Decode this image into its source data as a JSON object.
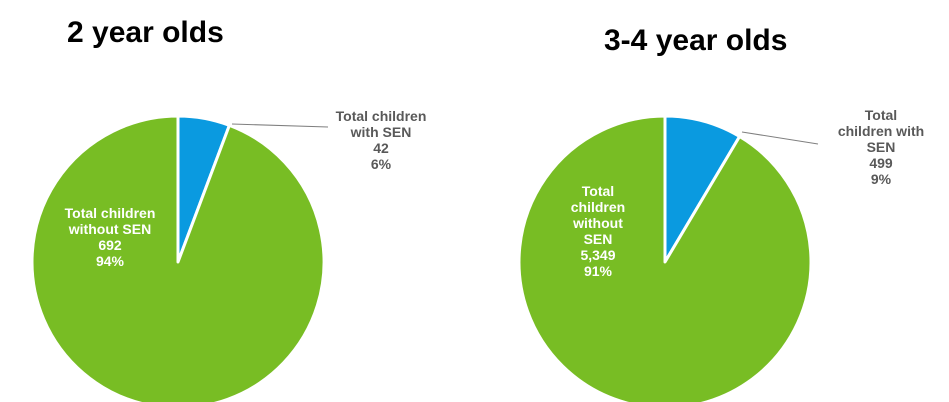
{
  "colors": {
    "with_sen": "#0a9ae0",
    "without_sen": "#78bd24",
    "slice_border": "#ffffff",
    "leader": "#7f7f7f"
  },
  "chart_data": [
    {
      "type": "pie",
      "title": "2 year olds",
      "slices": [
        {
          "label": "Total children with SEN",
          "value": 42,
          "percent": "6%",
          "color": "#0a9ae0",
          "label_lines": [
            "Total children",
            "with SEN",
            "42",
            "6%"
          ]
        },
        {
          "label": "Total children without SEN",
          "value": 692,
          "percent": "94%",
          "color": "#78bd24",
          "label_lines": [
            "Total children",
            "without SEN",
            "692",
            "94%"
          ]
        }
      ]
    },
    {
      "type": "pie",
      "title": "3-4 year olds",
      "slices": [
        {
          "label": "Total children with SEN",
          "value": 499,
          "percent": "9%",
          "color": "#0a9ae0",
          "label_lines": [
            "Total",
            "children with",
            "SEN",
            "499",
            "9%"
          ]
        },
        {
          "label": "Total children without SEN",
          "value": 5349,
          "percent": "91%",
          "color": "#78bd24",
          "label_lines": [
            "Total",
            "children",
            "without",
            "SEN",
            "5,349",
            "91%"
          ]
        }
      ]
    }
  ]
}
